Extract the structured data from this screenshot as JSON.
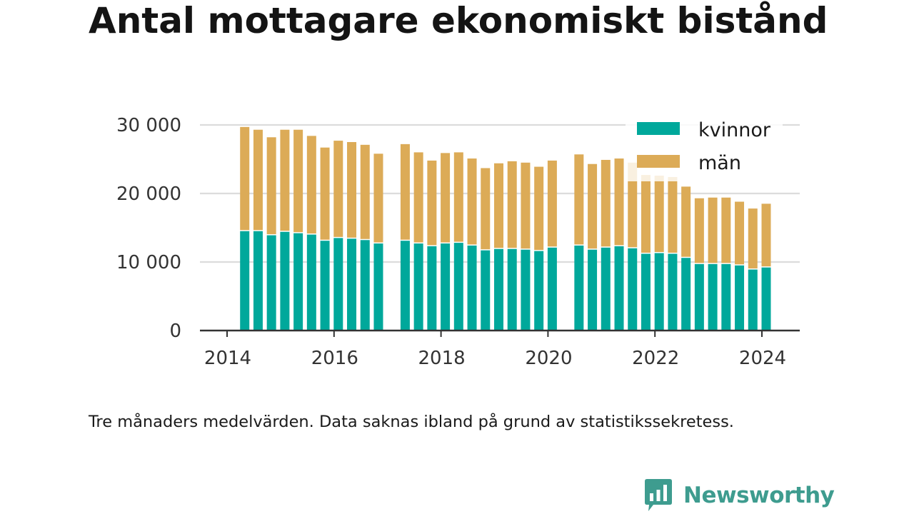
{
  "header": {
    "title": "Antal mottagare ekonomiskt bistånd"
  },
  "footnote": "Tre månaders medelvärden. Data saknas ibland på grund av statistikssekretess.",
  "logo": {
    "text": "Newsworthy",
    "icon": "newsworthy-chart-bubble-icon",
    "color": "#3e9c8f"
  },
  "colors": {
    "kvinnor": "#00a89b",
    "man": "#dcab57",
    "grid": "#dcdcdc",
    "axis": "#333333"
  },
  "chart_data": {
    "type": "bar",
    "stacked": true,
    "y_ticks": [
      0,
      10000,
      20000,
      30000
    ],
    "y_tick_labels": [
      "0",
      "10 000",
      "20 000",
      "30 000"
    ],
    "x_ticks": [
      2014,
      2016,
      2018,
      2020,
      2022,
      2024
    ],
    "x_tick_labels": [
      "2014",
      "2016",
      "2018",
      "2020",
      "2022",
      "2024"
    ],
    "ylim": [
      0,
      30000
    ],
    "grid": true,
    "legend_position": "top-right",
    "series": [
      {
        "name": "kvinnor",
        "color": "#00a89b",
        "points": [
          {
            "x": 2014.33,
            "y": 14500
          },
          {
            "x": 2014.58,
            "y": 14500
          },
          {
            "x": 2014.83,
            "y": 13900
          },
          {
            "x": 2015.08,
            "y": 14400
          },
          {
            "x": 2015.33,
            "y": 14200
          },
          {
            "x": 2015.58,
            "y": 14000
          },
          {
            "x": 2015.83,
            "y": 13100
          },
          {
            "x": 2016.08,
            "y": 13500
          },
          {
            "x": 2016.33,
            "y": 13400
          },
          {
            "x": 2016.58,
            "y": 13200
          },
          {
            "x": 2016.83,
            "y": 12700
          },
          {
            "x": 2017.33,
            "y": 13100
          },
          {
            "x": 2017.58,
            "y": 12700
          },
          {
            "x": 2017.83,
            "y": 12300
          },
          {
            "x": 2018.08,
            "y": 12700
          },
          {
            "x": 2018.33,
            "y": 12800
          },
          {
            "x": 2018.58,
            "y": 12400
          },
          {
            "x": 2018.83,
            "y": 11700
          },
          {
            "x": 2019.08,
            "y": 11900
          },
          {
            "x": 2019.33,
            "y": 11900
          },
          {
            "x": 2019.58,
            "y": 11800
          },
          {
            "x": 2019.83,
            "y": 11600
          },
          {
            "x": 2020.08,
            "y": 12100
          },
          {
            "x": 2020.58,
            "y": 12400
          },
          {
            "x": 2020.83,
            "y": 11800
          },
          {
            "x": 2021.08,
            "y": 12100
          },
          {
            "x": 2021.33,
            "y": 12300
          },
          {
            "x": 2021.58,
            "y": 12000
          },
          {
            "x": 2021.83,
            "y": 11200
          },
          {
            "x": 2022.08,
            "y": 11300
          },
          {
            "x": 2022.33,
            "y": 11200
          },
          {
            "x": 2022.58,
            "y": 10600
          },
          {
            "x": 2022.83,
            "y": 9700
          },
          {
            "x": 2023.08,
            "y": 9700
          },
          {
            "x": 2023.33,
            "y": 9700
          },
          {
            "x": 2023.58,
            "y": 9500
          },
          {
            "x": 2023.83,
            "y": 8900
          },
          {
            "x": 2024.08,
            "y": 9200
          }
        ]
      },
      {
        "name": "män",
        "color": "#dcab57",
        "points": [
          {
            "x": 2014.33,
            "y": 15200
          },
          {
            "x": 2014.58,
            "y": 14800
          },
          {
            "x": 2014.83,
            "y": 14300
          },
          {
            "x": 2015.08,
            "y": 14900
          },
          {
            "x": 2015.33,
            "y": 15100
          },
          {
            "x": 2015.58,
            "y": 14400
          },
          {
            "x": 2015.83,
            "y": 13600
          },
          {
            "x": 2016.08,
            "y": 14200
          },
          {
            "x": 2016.33,
            "y": 14100
          },
          {
            "x": 2016.58,
            "y": 13900
          },
          {
            "x": 2016.83,
            "y": 13100
          },
          {
            "x": 2017.33,
            "y": 14100
          },
          {
            "x": 2017.58,
            "y": 13300
          },
          {
            "x": 2017.83,
            "y": 12500
          },
          {
            "x": 2018.08,
            "y": 13200
          },
          {
            "x": 2018.33,
            "y": 13200
          },
          {
            "x": 2018.58,
            "y": 12700
          },
          {
            "x": 2018.83,
            "y": 12000
          },
          {
            "x": 2019.08,
            "y": 12500
          },
          {
            "x": 2019.33,
            "y": 12800
          },
          {
            "x": 2019.58,
            "y": 12700
          },
          {
            "x": 2019.83,
            "y": 12300
          },
          {
            "x": 2020.08,
            "y": 12700
          },
          {
            "x": 2020.58,
            "y": 13300
          },
          {
            "x": 2020.83,
            "y": 12500
          },
          {
            "x": 2021.08,
            "y": 12800
          },
          {
            "x": 2021.33,
            "y": 12800
          },
          {
            "x": 2021.58,
            "y": 12500
          },
          {
            "x": 2021.83,
            "y": 11500
          },
          {
            "x": 2022.08,
            "y": 11300
          },
          {
            "x": 2022.33,
            "y": 11200
          },
          {
            "x": 2022.58,
            "y": 10400
          },
          {
            "x": 2022.83,
            "y": 9600
          },
          {
            "x": 2023.08,
            "y": 9700
          },
          {
            "x": 2023.33,
            "y": 9700
          },
          {
            "x": 2023.58,
            "y": 9300
          },
          {
            "x": 2023.83,
            "y": 8900
          },
          {
            "x": 2024.08,
            "y": 9300
          }
        ]
      }
    ]
  }
}
